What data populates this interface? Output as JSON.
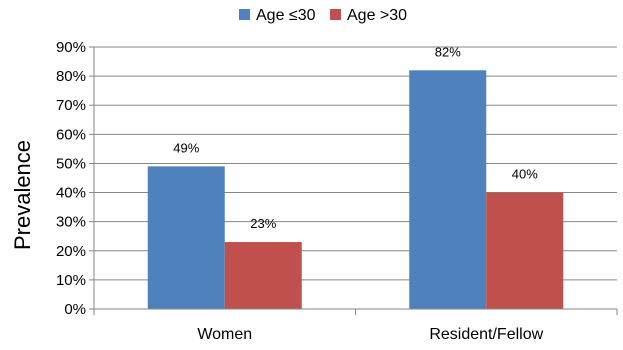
{
  "chart_data": {
    "type": "bar",
    "categories": [
      "Women",
      "Resident/Fellow"
    ],
    "series": [
      {
        "name": "Age ≤30",
        "values": [
          49,
          82
        ],
        "labels": [
          "49%",
          "82%"
        ],
        "color": "#4F81BD"
      },
      {
        "name": "Age >30",
        "values": [
          23,
          40
        ],
        "labels": [
          "23%",
          "40%"
        ],
        "color": "#C0504D"
      }
    ],
    "title": "",
    "xlabel": "",
    "ylabel": "Prevalence",
    "ylim": [
      0,
      90
    ],
    "yticks": [
      0,
      10,
      20,
      30,
      40,
      50,
      60,
      70,
      80,
      90
    ],
    "ytick_labels": [
      "0%",
      "10%",
      "20%",
      "30%",
      "40%",
      "50%",
      "60%",
      "70%",
      "80%",
      "90%"
    ],
    "grid": true,
    "legend_position": "top-center"
  }
}
